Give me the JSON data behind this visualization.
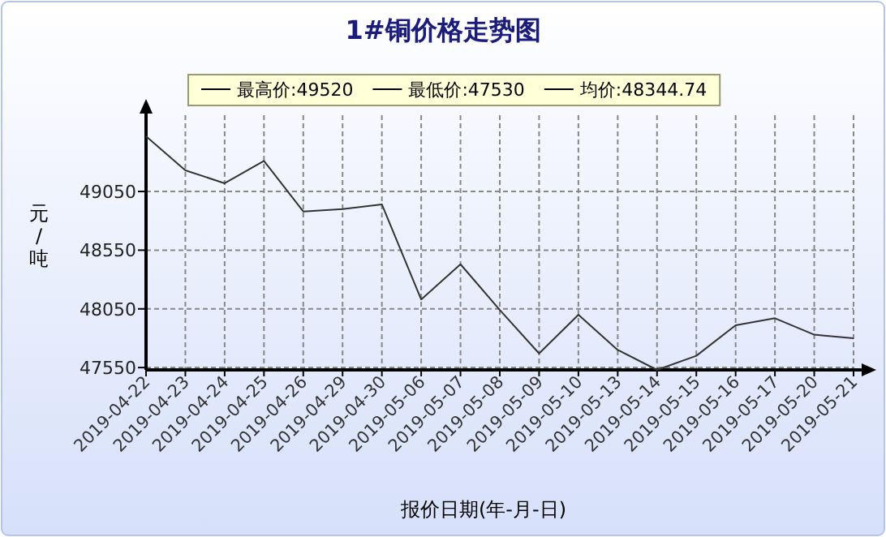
{
  "chart_data": {
    "type": "line",
    "title": "1#铜价格走势图",
    "xlabel": "报价日期(年-月-日)",
    "ylabel": "元/吨",
    "annotations": [
      "最高价:49520",
      "最低价:47530",
      "均价:48344.74"
    ],
    "categories": [
      "2019-04-22",
      "2019-04-23",
      "2019-04-24",
      "2019-04-25",
      "2019-04-26",
      "2019-04-29",
      "2019-04-30",
      "2019-05-06",
      "2019-05-07",
      "2019-05-08",
      "2019-05-09",
      "2019-05-10",
      "2019-05-13",
      "2019-05-14",
      "2019-05-15",
      "2019-05-16",
      "2019-05-17",
      "2019-05-20",
      "2019-05-21"
    ],
    "series": [
      {
        "color": "#333333",
        "values": [
          49520,
          49230,
          49120,
          49310,
          48880,
          48900,
          48940,
          48130,
          48430,
          48040,
          47670,
          48000,
          47700,
          47530,
          47650,
          47910,
          47970,
          47830,
          47800
        ]
      }
    ],
    "ylim": [
      47530,
      49700
    ],
    "yticks": [
      47550,
      48050,
      48550,
      49050
    ],
    "grid": true
  }
}
